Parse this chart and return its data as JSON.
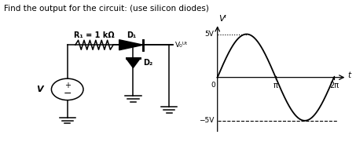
{
  "title": "Find the output for the circuit: (use silicon diodes)",
  "circuit": {
    "R1_label": "R₁ = 1 kΩ",
    "D1_label": "D₁",
    "D2_label": "D₂",
    "V_label": "V",
    "Vout_label": "V₀ᵁᵗ"
  },
  "graph": {
    "ylabel": "Vᴵ",
    "xlabel": "t",
    "y5v_label": "5V",
    "yneg5v_label": "−5V",
    "zero_label": "0",
    "pi_label": "π",
    "two_pi_label": "2π",
    "amplitude": 5,
    "bg_color": "#ffffff"
  }
}
